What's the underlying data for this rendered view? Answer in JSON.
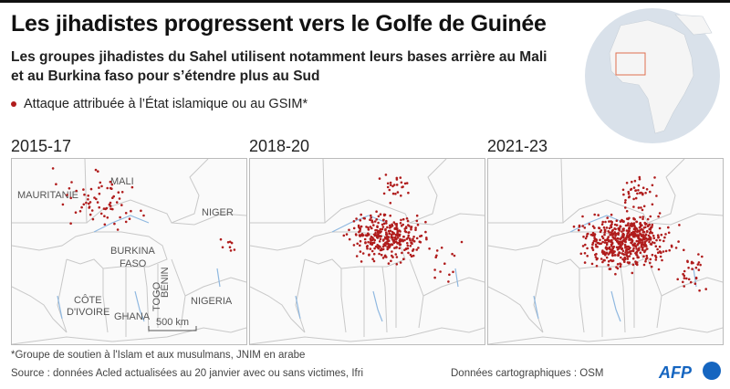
{
  "header": {
    "title": "Les jihadistes progressent vers le Golfe de Guinée",
    "subtitle": "Les groupes jihadistes du Sahel utilisent notamment leurs bases arrière au Mali et au Burkina faso pour s’étendre plus au Sud"
  },
  "legend": {
    "label": "Attaque attribuée à l’État islamique ou au GSIM*",
    "color": "#b01c1c"
  },
  "maps": [
    {
      "period": "2015-17",
      "countries": [
        "MAURITANIE",
        "MALI",
        "NIGER",
        "BURKINA",
        "FASO",
        "BÉNIN",
        "TOGO",
        "CÔTE",
        "D'IVOIRE",
        "GHANA",
        "NIGERIA"
      ],
      "scale": "500 km"
    },
    {
      "period": "2018-20"
    },
    {
      "period": "2021-23"
    }
  ],
  "footer": {
    "note": "*Groupe de soutien à l'Islam et aux musulmans, JNIM en arabe",
    "source": "Source : données Acled actualisées au 20 janvier avec ou sans victimes, Ifri",
    "cartography": "Données cartographiques : OSM",
    "logo": "AFP"
  },
  "colors": {
    "attack": "#b01c1c",
    "water": "#8fb8e0",
    "border": "#c8c8c8",
    "globe": "#d9e1ea",
    "globe_land": "#f2f2f2",
    "brand": "#1565c0"
  }
}
